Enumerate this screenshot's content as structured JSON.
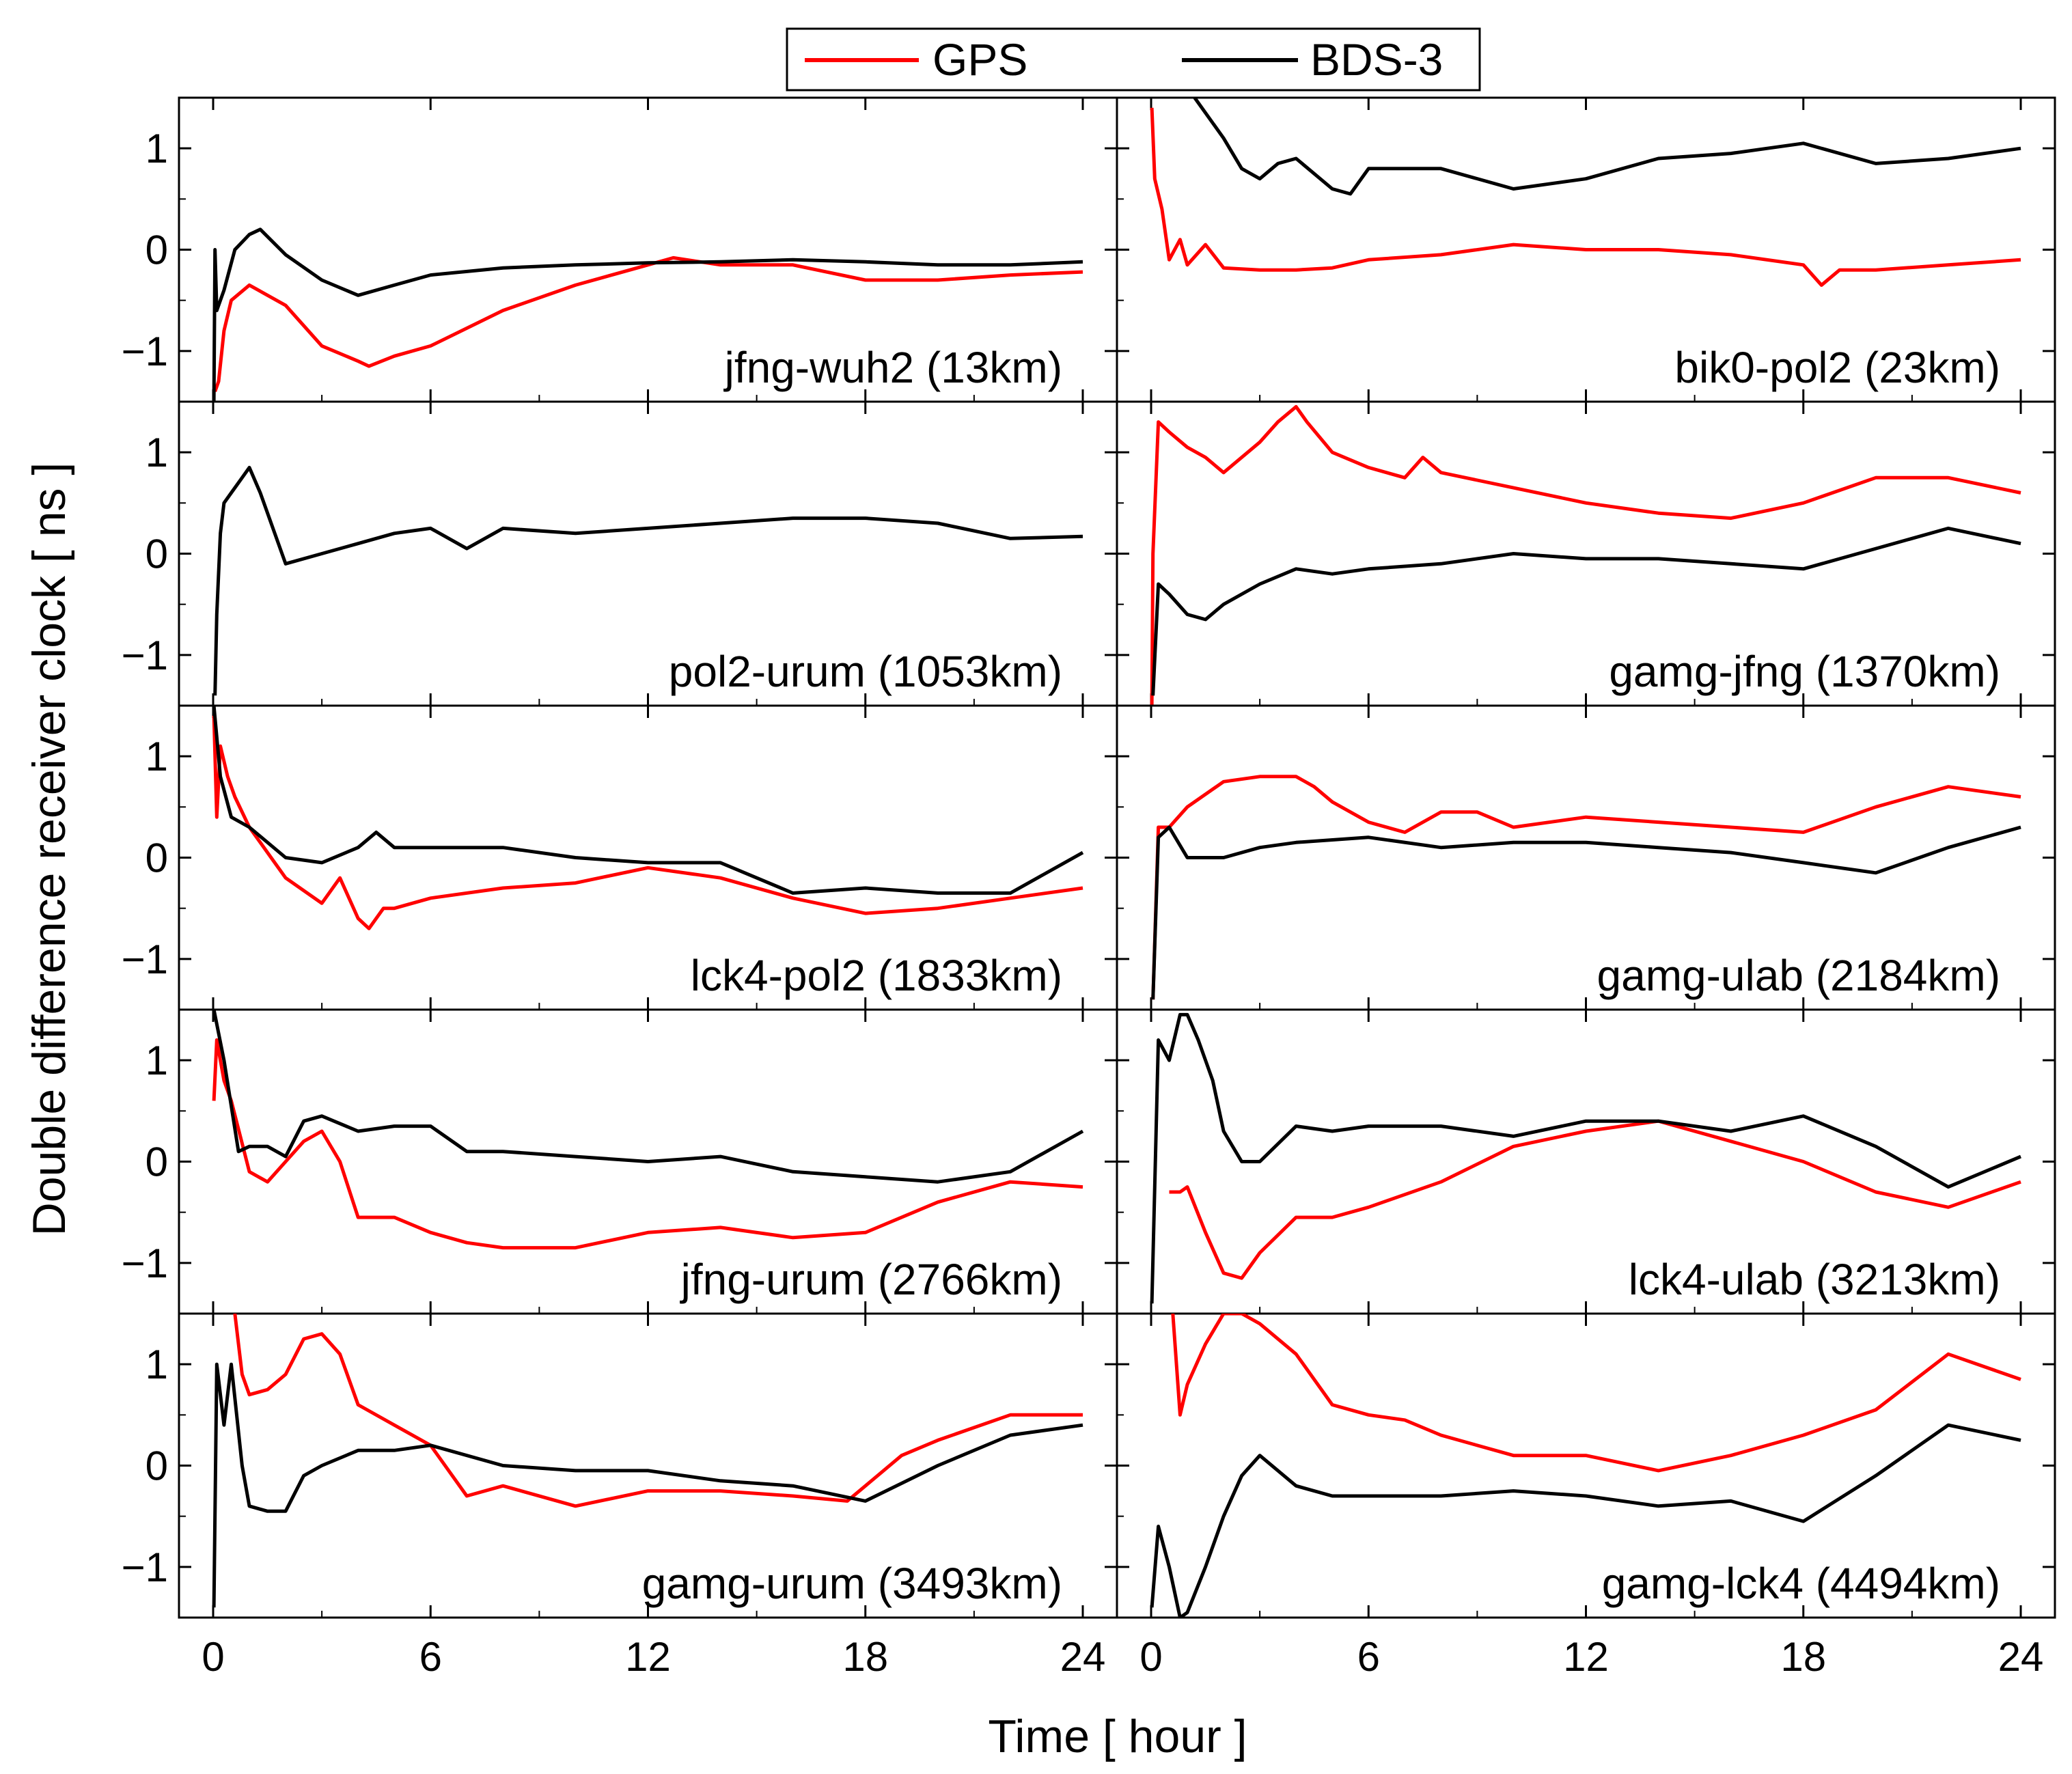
{
  "colors": {
    "GPS": "#ff0000",
    "BDS-3": "#000000"
  },
  "chart_data": {
    "type": "line",
    "title": "",
    "xlabel": "Time [ hour ]",
    "ylabel": "Double difference receiver clock [ ns ]",
    "xlim": [
      0,
      24
    ],
    "ylim": [
      -1.5,
      1.5
    ],
    "xticks": [
      0,
      6,
      12,
      18,
      24
    ],
    "xtick_labels": [
      "0",
      "6",
      "12",
      "18",
      "24"
    ],
    "yticks": [
      1,
      0,
      -1
    ],
    "ytick_labels": [
      "1",
      "0",
      "−1"
    ],
    "legend": {
      "position": "top-center",
      "entries": [
        "GPS",
        "BDS-3"
      ]
    },
    "panels": [
      {
        "label": "jfng-wuh2 (13km)",
        "series": [
          {
            "name": "GPS",
            "x": [
              0.05,
              0.15,
              0.3,
              0.5,
              1,
              2,
              3,
              4,
              4.3,
              5,
              6,
              8,
              10,
              12,
              12.7,
              14,
              16,
              18,
              20,
              22,
              24
            ],
            "y": [
              -1.4,
              -1.3,
              -0.8,
              -0.5,
              -0.35,
              -0.55,
              -0.95,
              -1.1,
              -1.15,
              -1.05,
              -0.95,
              -0.6,
              -0.35,
              -0.15,
              -0.08,
              -0.15,
              -0.15,
              -0.3,
              -0.3,
              -0.25,
              -0.22
            ]
          },
          {
            "name": "BDS-3",
            "x": [
              0.02,
              0.05,
              0.1,
              0.3,
              0.6,
              1,
              1.3,
              2,
              3,
              4,
              5,
              6,
              8,
              10,
              12,
              14,
              16,
              18,
              20,
              22,
              24
            ],
            "y": [
              -1.5,
              0.0,
              -0.6,
              -0.4,
              0.0,
              0.15,
              0.2,
              -0.05,
              -0.3,
              -0.45,
              -0.35,
              -0.25,
              -0.18,
              -0.15,
              -0.13,
              -0.12,
              -0.1,
              -0.12,
              -0.15,
              -0.15,
              -0.12
            ]
          }
        ]
      },
      {
        "label": "bik0-pol2 (23km)",
        "series": [
          {
            "name": "GPS",
            "x": [
              0.02,
              0.1,
              0.3,
              0.5,
              0.8,
              1,
              1.5,
              2,
              3,
              4,
              5,
              6,
              8,
              10,
              12,
              14,
              16,
              18,
              18.5,
              19,
              20,
              22,
              24
            ],
            "y": [
              1.4,
              0.7,
              0.4,
              -0.1,
              0.1,
              -0.15,
              0.05,
              -0.18,
              -0.2,
              -0.2,
              -0.18,
              -0.1,
              -0.05,
              0.05,
              0.0,
              0.0,
              -0.05,
              -0.15,
              -0.35,
              -0.2,
              -0.2,
              -0.15,
              -0.1
            ]
          },
          {
            "name": "BDS-3",
            "x": [
              1.2,
              2,
              2.5,
              3,
              3.5,
              4,
              5,
              5.5,
              6,
              8,
              10,
              12,
              14,
              16,
              18,
              20,
              22,
              24
            ],
            "y": [
              1.5,
              1.1,
              0.8,
              0.7,
              0.85,
              0.9,
              0.6,
              0.55,
              0.8,
              0.8,
              0.6,
              0.7,
              0.9,
              0.95,
              1.05,
              0.85,
              0.9,
              1.0
            ]
          }
        ]
      },
      {
        "label": "pol2-urum (1053km)",
        "series": [
          {
            "name": "BDS-3",
            "x": [
              0.05,
              0.1,
              0.2,
              0.3,
              0.5,
              0.8,
              1,
              1.3,
              1.7,
              2,
              3,
              4,
              5,
              6,
              7,
              8,
              10,
              12,
              14,
              16,
              18,
              20,
              22,
              24
            ],
            "y": [
              -1.4,
              -0.6,
              0.2,
              0.5,
              0.6,
              0.75,
              0.85,
              0.6,
              0.2,
              -0.1,
              0.0,
              0.1,
              0.2,
              0.25,
              0.05,
              0.25,
              0.2,
              0.25,
              0.3,
              0.35,
              0.35,
              0.3,
              0.15,
              0.17
            ]
          }
        ]
      },
      {
        "label": "gamg-jfng (1370km)",
        "series": [
          {
            "name": "GPS",
            "x": [
              0.02,
              0.05,
              0.2,
              0.5,
              1,
              1.5,
              2,
              3,
              3.5,
              4,
              4.3,
              5,
              6,
              7,
              7.5,
              8,
              10,
              12,
              14,
              16,
              18,
              20,
              22,
              24
            ],
            "y": [
              -1.5,
              0.0,
              1.3,
              1.2,
              1.05,
              0.95,
              0.8,
              1.1,
              1.3,
              1.45,
              1.3,
              1.0,
              0.85,
              0.75,
              0.95,
              0.8,
              0.65,
              0.5,
              0.4,
              0.35,
              0.5,
              0.75,
              0.75,
              0.6
            ]
          },
          {
            "name": "BDS-3",
            "x": [
              0.05,
              0.2,
              0.5,
              1,
              1.5,
              2,
              3,
              4,
              5,
              6,
              8,
              10,
              12,
              14,
              16,
              18,
              20,
              22,
              24
            ],
            "y": [
              -1.4,
              -0.3,
              -0.4,
              -0.6,
              -0.65,
              -0.5,
              -0.3,
              -0.15,
              -0.2,
              -0.15,
              -0.1,
              0.0,
              -0.05,
              -0.05,
              -0.1,
              -0.15,
              0.05,
              0.25,
              0.1
            ]
          }
        ]
      },
      {
        "label": "lck4-pol2 (1833km)",
        "series": [
          {
            "name": "GPS",
            "x": [
              0.02,
              0.1,
              0.2,
              0.4,
              0.6,
              1,
              2,
              3,
              3.5,
              4,
              4.3,
              4.7,
              5,
              6,
              8,
              10,
              12,
              14,
              16,
              18,
              20,
              22,
              24
            ],
            "y": [
              1.4,
              0.4,
              1.1,
              0.8,
              0.6,
              0.3,
              -0.2,
              -0.45,
              -0.2,
              -0.6,
              -0.7,
              -0.5,
              -0.5,
              -0.4,
              -0.3,
              -0.25,
              -0.1,
              -0.2,
              -0.4,
              -0.55,
              -0.5,
              -0.4,
              -0.3
            ]
          },
          {
            "name": "BDS-3",
            "x": [
              0.02,
              0.2,
              0.5,
              1,
              2,
              3,
              4,
              4.5,
              5,
              6,
              8,
              10,
              12,
              14,
              16,
              18,
              20,
              22,
              24
            ],
            "y": [
              1.5,
              0.8,
              0.4,
              0.3,
              0.0,
              -0.05,
              0.1,
              0.25,
              0.1,
              0.1,
              0.1,
              0.0,
              -0.05,
              -0.05,
              -0.35,
              -0.3,
              -0.35,
              -0.35,
              0.05
            ]
          }
        ]
      },
      {
        "label": "gamg-ulab (2184km)",
        "series": [
          {
            "name": "GPS",
            "x": [
              0.05,
              0.2,
              0.5,
              1,
              2,
              3,
              4,
              4.5,
              5,
              6,
              7,
              8,
              9,
              10,
              12,
              14,
              16,
              18,
              20,
              22,
              24
            ],
            "y": [
              -1.4,
              0.3,
              0.3,
              0.5,
              0.75,
              0.8,
              0.8,
              0.7,
              0.55,
              0.35,
              0.25,
              0.45,
              0.45,
              0.3,
              0.4,
              0.35,
              0.3,
              0.25,
              0.5,
              0.7,
              0.6
            ]
          },
          {
            "name": "BDS-3",
            "x": [
              0.05,
              0.2,
              0.5,
              1,
              2,
              3,
              4,
              6,
              8,
              10,
              12,
              14,
              16,
              18,
              20,
              22,
              24
            ],
            "y": [
              -1.4,
              0.2,
              0.3,
              0.0,
              0.0,
              0.1,
              0.15,
              0.2,
              0.1,
              0.15,
              0.15,
              0.1,
              0.05,
              -0.05,
              -0.15,
              0.1,
              0.3
            ]
          }
        ]
      },
      {
        "label": "jfng-urum (2766km)",
        "series": [
          {
            "name": "GPS",
            "x": [
              0.02,
              0.1,
              0.3,
              0.5,
              1,
              1.5,
              2,
              2.5,
              3,
              3.5,
              4,
              5,
              6,
              7,
              8,
              10,
              12,
              14,
              16,
              18,
              20,
              22,
              24
            ],
            "y": [
              0.6,
              1.2,
              0.8,
              0.6,
              -0.1,
              -0.2,
              0.0,
              0.2,
              0.3,
              0.0,
              -0.55,
              -0.55,
              -0.7,
              -0.8,
              -0.85,
              -0.85,
              -0.7,
              -0.65,
              -0.75,
              -0.7,
              -0.4,
              -0.2,
              -0.25
            ]
          },
          {
            "name": "BDS-3",
            "x": [
              0.02,
              0.3,
              0.7,
              1,
              1.5,
              2,
              2.5,
              3,
              4,
              5,
              6,
              7,
              8,
              10,
              12,
              14,
              16,
              18,
              20,
              22,
              24
            ],
            "y": [
              1.5,
              1.0,
              0.1,
              0.15,
              0.15,
              0.05,
              0.4,
              0.45,
              0.3,
              0.35,
              0.35,
              0.1,
              0.1,
              0.05,
              0.0,
              0.05,
              -0.1,
              -0.15,
              -0.2,
              -0.1,
              0.3
            ]
          }
        ]
      },
      {
        "label": "lck4-ulab (3213km)",
        "series": [
          {
            "name": "GPS",
            "x": [
              0.5,
              0.8,
              1,
              1.5,
              2,
              2.5,
              3,
              4,
              5,
              6,
              8,
              10,
              12,
              14,
              16,
              18,
              20,
              22,
              24
            ],
            "y": [
              -0.3,
              -0.3,
              -0.25,
              -0.7,
              -1.1,
              -1.15,
              -0.9,
              -0.55,
              -0.55,
              -0.45,
              -0.2,
              0.15,
              0.3,
              0.4,
              0.2,
              0.0,
              -0.3,
              -0.45,
              -0.2
            ]
          },
          {
            "name": "BDS-3",
            "x": [
              0.02,
              0.2,
              0.5,
              0.8,
              1,
              1.3,
              1.7,
              2,
              2.5,
              3,
              4,
              5,
              6,
              8,
              10,
              12,
              14,
              16,
              18,
              20,
              22,
              24
            ],
            "y": [
              -1.4,
              1.2,
              1.0,
              1.45,
              1.45,
              1.2,
              0.8,
              0.3,
              0.0,
              0.0,
              0.35,
              0.3,
              0.35,
              0.35,
              0.25,
              0.4,
              0.4,
              0.3,
              0.45,
              0.15,
              -0.25,
              0.05
            ]
          }
        ]
      },
      {
        "label": "gamg-urum (3493km)",
        "series": [
          {
            "name": "GPS",
            "x": [
              0.6,
              0.8,
              1,
              1.5,
              2,
              2.5,
              3,
              3.5,
              4,
              5,
              6,
              7,
              8,
              10,
              12,
              14,
              16,
              17.5,
              18,
              19,
              20,
              22,
              24
            ],
            "y": [
              1.5,
              0.9,
              0.7,
              0.75,
              0.9,
              1.25,
              1.3,
              1.1,
              0.6,
              0.4,
              0.2,
              -0.3,
              -0.2,
              -0.4,
              -0.25,
              -0.25,
              -0.3,
              -0.35,
              -0.2,
              0.1,
              0.25,
              0.5,
              0.5
            ]
          },
          {
            "name": "BDS-3",
            "x": [
              0.02,
              0.1,
              0.3,
              0.5,
              0.8,
              1,
              1.5,
              2,
              2.5,
              3,
              4,
              5,
              6,
              8,
              10,
              12,
              14,
              16,
              18,
              20,
              22,
              24
            ],
            "y": [
              -1.4,
              1.0,
              0.4,
              1.0,
              0.0,
              -0.4,
              -0.45,
              -0.45,
              -0.1,
              0.0,
              0.15,
              0.15,
              0.2,
              0.0,
              -0.05,
              -0.05,
              -0.15,
              -0.2,
              -0.35,
              0.0,
              0.3,
              0.4
            ]
          }
        ]
      },
      {
        "label": "gamg-lck4 (4494km)",
        "series": [
          {
            "name": "GPS",
            "x": [
              0.6,
              0.8,
              1,
              1.5,
              2,
              2.5,
              3,
              4,
              5,
              6,
              7,
              8,
              10,
              12,
              14,
              16,
              18,
              20,
              22,
              24
            ],
            "y": [
              1.5,
              0.5,
              0.8,
              1.2,
              1.5,
              1.5,
              1.4,
              1.1,
              0.6,
              0.5,
              0.45,
              0.3,
              0.1,
              0.1,
              -0.05,
              0.1,
              0.3,
              0.55,
              1.1,
              0.85
            ]
          },
          {
            "name": "BDS-3",
            "x": [
              0.02,
              0.2,
              0.5,
              0.8,
              1,
              1.5,
              2,
              2.5,
              3,
              4,
              5,
              6,
              8,
              10,
              12,
              14,
              16,
              18,
              20,
              22,
              24
            ],
            "y": [
              -1.4,
              -0.6,
              -1.0,
              -1.5,
              -1.45,
              -1.0,
              -0.5,
              -0.1,
              0.1,
              -0.2,
              -0.3,
              -0.3,
              -0.3,
              -0.25,
              -0.3,
              -0.4,
              -0.35,
              -0.55,
              -0.1,
              0.4,
              0.25
            ]
          }
        ]
      }
    ]
  }
}
